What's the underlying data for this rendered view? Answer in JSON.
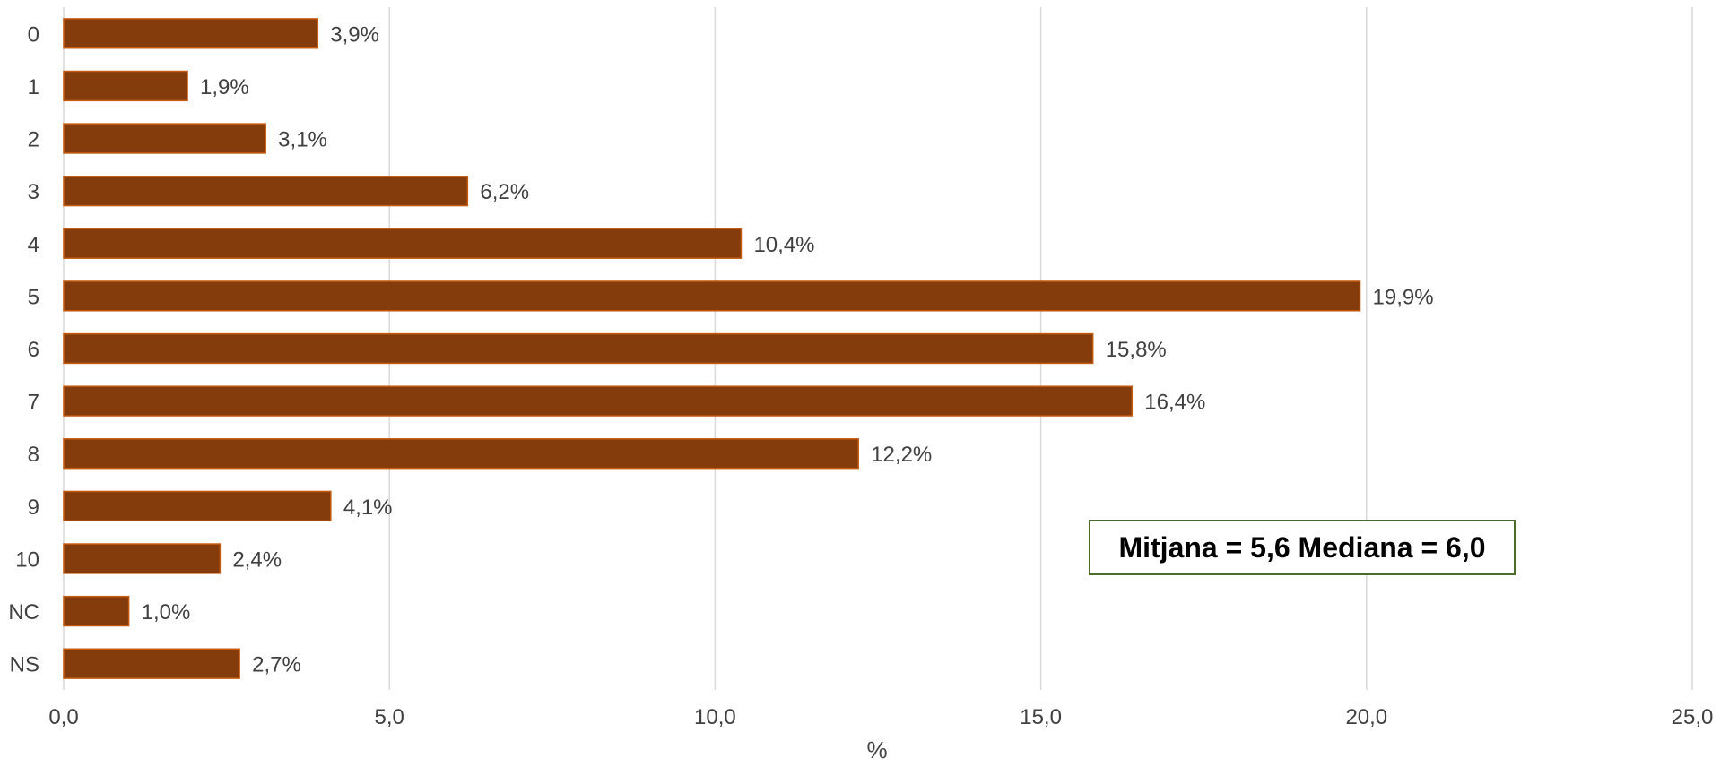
{
  "chart_data": {
    "type": "bar",
    "orientation": "horizontal",
    "categories": [
      "0",
      "1",
      "2",
      "3",
      "4",
      "5",
      "6",
      "7",
      "8",
      "9",
      "10",
      "NC",
      "NS"
    ],
    "values": [
      3.9,
      1.9,
      3.1,
      6.2,
      10.4,
      19.9,
      15.8,
      16.4,
      12.2,
      4.1,
      2.4,
      1.0,
      2.7
    ],
    "data_labels": [
      "3,9%",
      "1,9%",
      "3,1%",
      "6,2%",
      "10,4%",
      "19,9%",
      "15,8%",
      "16,4%",
      "12,2%",
      "4,1%",
      "2,4%",
      "1,0%",
      "2,7%"
    ],
    "xlabel": "%",
    "ylabel": "",
    "xlim": [
      0,
      25
    ],
    "x_ticks": [
      0,
      5,
      10,
      15,
      20,
      25
    ],
    "x_tick_labels": [
      "0,0",
      "5,0",
      "10,0",
      "15,0",
      "20,0",
      "25,0"
    ],
    "grid": "vertical",
    "legend": "none",
    "bar_color": "#843c0c",
    "bar_edge_color": "#c55a11",
    "annotation": "Mitjana = 5,6 Mediana = 6,0"
  }
}
